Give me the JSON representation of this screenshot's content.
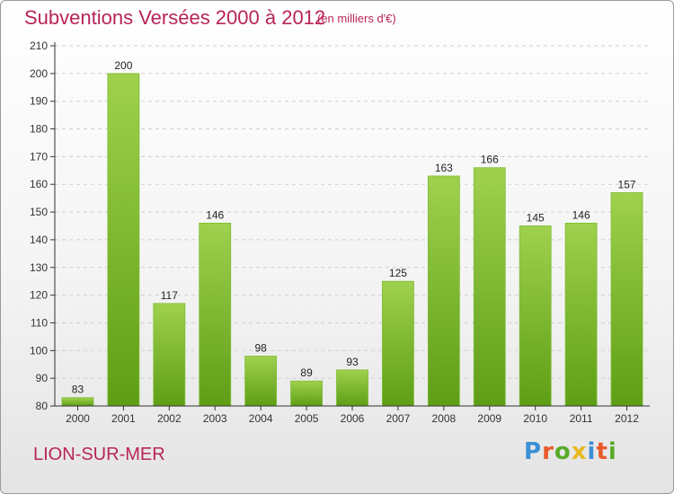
{
  "title": "Subventions Versées 2000 à 2012",
  "subtitle": "(en milliers d'€)",
  "commune": "LION-SUR-MER",
  "logo": {
    "letters": [
      "P",
      "r",
      "o",
      "x",
      "i",
      "t",
      "i"
    ],
    "colors": [
      "#3b8fd6",
      "#e85a2a",
      "#5aaa2a",
      "#e8b820",
      "#3b8fd6",
      "#e85a2a",
      "#5aaa2a"
    ]
  },
  "colors": {
    "bar_light": "#9fd14e",
    "bar_dark": "#5e9e16",
    "text_accent": "#b8245a",
    "axis": "#333333",
    "grid": "#cfcfcf"
  },
  "chart_data": {
    "type": "bar",
    "categories": [
      "2000",
      "2001",
      "2002",
      "2003",
      "2004",
      "2005",
      "2006",
      "2007",
      "2008",
      "2009",
      "2010",
      "2011",
      "2012"
    ],
    "values": [
      83,
      200,
      117,
      146,
      98,
      89,
      93,
      125,
      163,
      166,
      145,
      146,
      157
    ],
    "ylim": [
      80,
      210
    ],
    "yticks": [
      80,
      90,
      100,
      110,
      120,
      130,
      140,
      150,
      160,
      170,
      180,
      190,
      200,
      210
    ],
    "grid": true,
    "data_labels": true
  }
}
